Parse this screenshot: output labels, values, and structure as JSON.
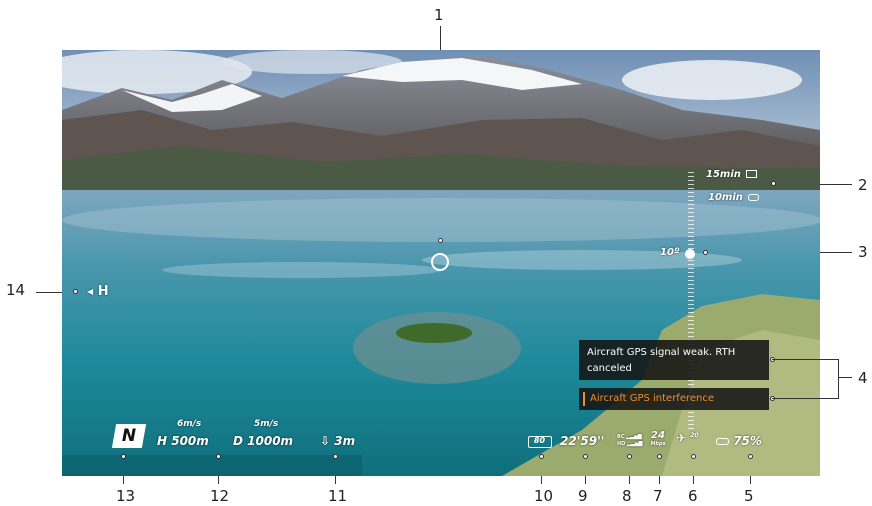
{
  "callouts": [
    "1",
    "2",
    "3",
    "4",
    "5",
    "6",
    "7",
    "8",
    "9",
    "10",
    "11",
    "12",
    "13",
    "14"
  ],
  "hud": {
    "return_times": [
      {
        "value": "15min",
        "icon": "battery-warning-icon"
      },
      {
        "value": "10min",
        "icon": "goggles-rth-icon"
      }
    ],
    "gimbal_angle": "10º",
    "home_marker": "H",
    "heading": "N",
    "horizontal_speed": "6m/s",
    "height_label": "H",
    "height_value": "500m",
    "vertical_speed": "5m/s",
    "distance_label": "D",
    "distance_value": "1000m",
    "vision_distance": "3m",
    "battery_percent": "80",
    "flight_time": "22'59''",
    "rc_label": "RC",
    "hd_label": "HD",
    "bitrate": "24",
    "bitrate_unit": "Mbps",
    "gps_count": "20",
    "goggles_battery": "75%"
  },
  "messages": {
    "primary": "Aircraft GPS signal weak. RTH canceled",
    "secondary": "Aircraft GPS interference",
    "secondary_color": "#f08c2e"
  }
}
